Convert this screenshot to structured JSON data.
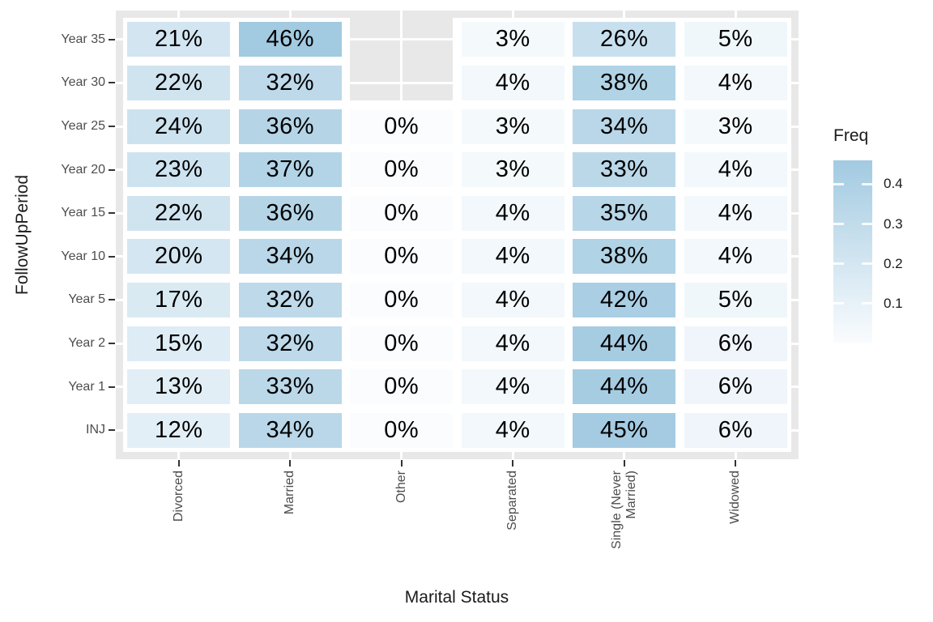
{
  "chart_data": {
    "type": "heatmap",
    "title": "",
    "xlabel": "Marital Status",
    "ylabel": "FollowUpPeriod",
    "x_categories": [
      "Divorced",
      "Married",
      "Other",
      "Separated",
      "Single (Never\nMarried)",
      "Widowed"
    ],
    "y_categories": [
      "Year 35",
      "Year 30",
      "Year 25",
      "Year 20",
      "Year 15",
      "Year 10",
      "Year 5",
      "Year 2",
      "Year 1",
      "INJ"
    ],
    "values_percent": [
      [
        21,
        46,
        null,
        3,
        26,
        5
      ],
      [
        22,
        32,
        null,
        4,
        38,
        4
      ],
      [
        24,
        36,
        0,
        3,
        34,
        3
      ],
      [
        23,
        37,
        0,
        3,
        33,
        4
      ],
      [
        22,
        36,
        0,
        4,
        35,
        4
      ],
      [
        20,
        34,
        0,
        4,
        38,
        4
      ],
      [
        17,
        32,
        0,
        4,
        42,
        5
      ],
      [
        15,
        32,
        0,
        4,
        44,
        6
      ],
      [
        13,
        33,
        0,
        4,
        44,
        6
      ],
      [
        12,
        34,
        0,
        4,
        45,
        6
      ]
    ],
    "cell_label_suffix": "%",
    "legend": {
      "title": "Freq",
      "ticks": [
        0.4,
        0.3,
        0.2,
        0.1
      ],
      "domain": [
        0,
        0.46
      ],
      "position": "right"
    },
    "colors": {
      "low": "#fafcfe",
      "high": "#a2cae1",
      "na": "#e8e8e8",
      "panel_background": "#e8e8e8",
      "gridline": "#ffffff",
      "tick_mark": "#333333",
      "tick_label": "#4d4d4d",
      "title_text": "#1a1a1a"
    },
    "grid": "white gridlines at category centers, visible on panel edges and NA cells",
    "na_cells": [
      {
        "row": 0,
        "col": 2
      },
      {
        "row": 1,
        "col": 2
      }
    ]
  }
}
